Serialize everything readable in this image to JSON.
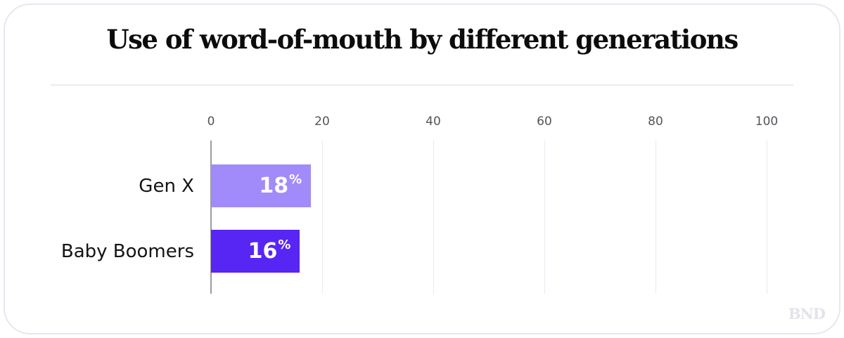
{
  "chart_data": {
    "type": "bar",
    "orientation": "horizontal",
    "title": "Use of word-of-mouth by different generations",
    "categories": [
      "Gen X",
      "Baby Boomers"
    ],
    "values": [
      18,
      16
    ],
    "value_suffix": "%",
    "bar_colors": [
      "#a18bfa",
      "#5826f4"
    ],
    "xlabel": "",
    "ylabel": "",
    "xlim": [
      0,
      100
    ],
    "x_ticks": [
      0,
      20,
      40,
      60,
      80,
      100
    ],
    "grid": true,
    "legend_position": "none"
  },
  "watermark": "BND",
  "colors": {
    "bar_gen_x": "#a18bfa",
    "bar_baby_boomers": "#5826f4",
    "title_text": "#0c0c0c",
    "tick_text": "#54545b",
    "axis_line": "#9b9ba2",
    "gridline": "#e9e9f2",
    "divider": "#ecebf5",
    "card_border": "#e8e6f2",
    "value_text": "#ffffff",
    "watermark_text": "#e3e3ea"
  }
}
